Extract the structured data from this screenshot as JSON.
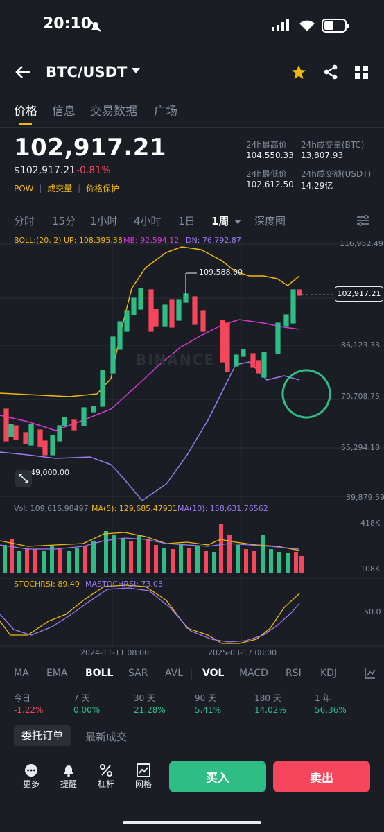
{
  "status": {
    "time": "20:10"
  },
  "header": {
    "pair": "BTC/USDT"
  },
  "tabs": [
    "价格",
    "信息",
    "交易数据",
    "广场"
  ],
  "ticker": {
    "price": "102,917.21",
    "price_usd": "$102,917.21",
    "change": "-0.81%",
    "tags": [
      "POW",
      "成交量",
      "价格保护"
    ],
    "high_label": "24h最高价",
    "high": "104,550.33",
    "vol_btc_label": "24h成交量(BTC)",
    "vol_btc": "13,807.93",
    "low_label": "24h最低价",
    "low": "102,612.50",
    "vol_usdt_label": "24h成交额(USDT)",
    "vol_usdt": "14.29亿"
  },
  "intervals": [
    "分时",
    "15分",
    "1小时",
    "4小时",
    "1日",
    "1周",
    "深度图"
  ],
  "chart_labels": {
    "boll": "BOLL:(20, 2)",
    "up": "UP: 108,395.38",
    "mb": "MB: 92,594.12",
    "dn": "DN: 76,792.87",
    "axis": [
      "116,952.49",
      "86,123.33",
      "70,708.75",
      "55,294.18",
      "39,879.59"
    ],
    "current": "102,917.21",
    "peak": "109,588.00",
    "low_mark": "49,000.00",
    "watermark": "BINANCE",
    "vol": "Vol: 109,616.98497",
    "ma5": "MA(5): 129,685.47931",
    "ma10": "MA(10): 158,631.76562",
    "vol_axis_top": "418K",
    "vol_axis_bot": "108K",
    "stoch": "STOCHRSI: 89.49",
    "mastoch": "MASTOCHRSI: 73.03",
    "stoch_axis": "50.0",
    "date1": "2024-11-11 08:00",
    "date2": "2025-03-17 08:00"
  },
  "indicators": [
    "MA",
    "EMA",
    "BOLL",
    "SAR",
    "AVL",
    "VOL",
    "MACD",
    "RSI",
    "KDJ"
  ],
  "performance": [
    {
      "label": "今日",
      "value": "-1.22%"
    },
    {
      "label": "7 天",
      "value": "0.00%"
    },
    {
      "label": "30 天",
      "value": "21.28%"
    },
    {
      "label": "90 天",
      "value": "5.41%"
    },
    {
      "label": "180 天",
      "value": "14.02%"
    },
    {
      "label": "1 年",
      "value": "56.36%"
    }
  ],
  "order_tabs": [
    "委托订单",
    "最新成交"
  ],
  "footer": {
    "more": "更多",
    "alert": "提醒",
    "leverage": "杠杆",
    "grid": "网格",
    "buy": "买入",
    "sell": "卖出"
  },
  "colors": {
    "up": "#2ebd85",
    "down": "#f6465d",
    "accent": "#f0b90b",
    "boll_up": "#f0b90b",
    "boll_mb": "#d63ad6",
    "boll_dn": "#9b7bf0"
  }
}
